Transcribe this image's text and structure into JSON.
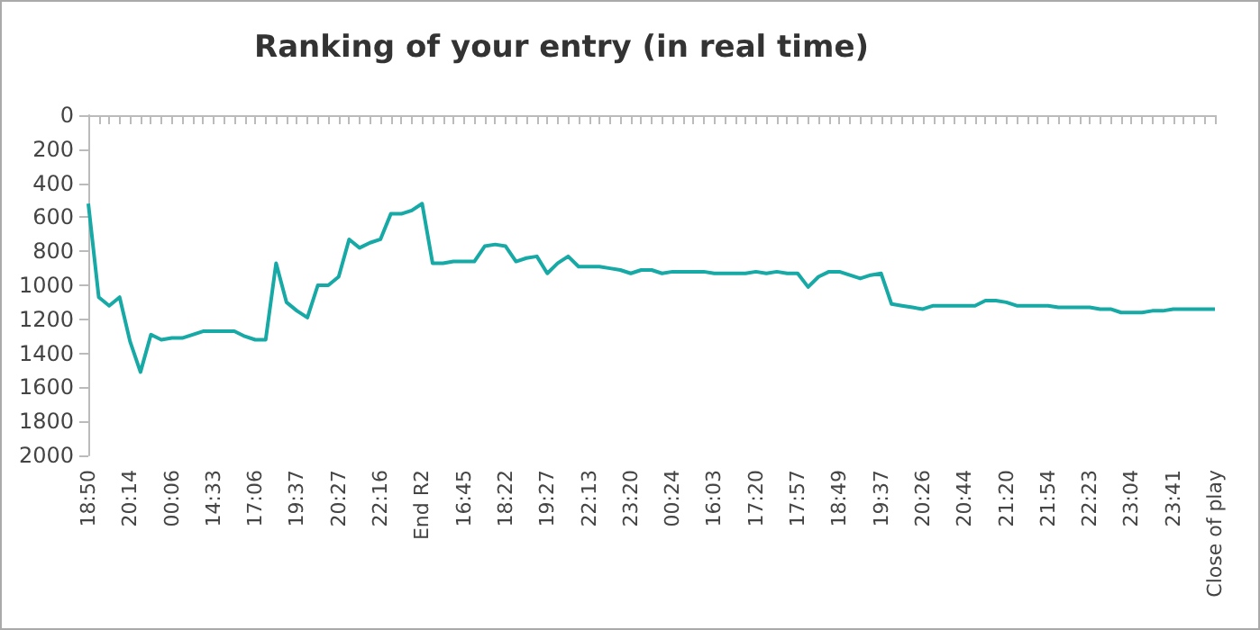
{
  "chart_data": {
    "type": "line",
    "title": "Ranking of your entry (in real time)",
    "categories": [
      "18:50",
      null,
      null,
      null,
      "20:14",
      null,
      null,
      null,
      "00:06",
      null,
      null,
      null,
      "14:33",
      null,
      null,
      null,
      "17:06",
      null,
      null,
      null,
      "19:37",
      null,
      null,
      null,
      "20:27",
      null,
      null,
      null,
      "22:16",
      null,
      null,
      null,
      "End R2",
      null,
      null,
      null,
      "16:45",
      null,
      null,
      null,
      "18:22",
      null,
      null,
      null,
      "19:27",
      null,
      null,
      null,
      "22:13",
      null,
      null,
      null,
      "23:20",
      null,
      null,
      null,
      "00:24",
      null,
      null,
      null,
      "16:03",
      null,
      null,
      null,
      "17:20",
      null,
      null,
      null,
      "17:57",
      null,
      null,
      null,
      "18:49",
      null,
      null,
      null,
      "19:37",
      null,
      null,
      null,
      "20:26",
      null,
      null,
      null,
      "20:44",
      null,
      null,
      null,
      "21:20",
      null,
      null,
      null,
      "21:54",
      null,
      null,
      null,
      "22:23",
      null,
      null,
      null,
      "23:04",
      null,
      null,
      null,
      "23:41",
      null,
      null,
      null,
      "Close of play"
    ],
    "series": [
      {
        "color": "#17a9a5",
        "values": [
          520,
          1070,
          1120,
          1070,
          1330,
          1510,
          1290,
          1320,
          1310,
          1310,
          1290,
          1270,
          1270,
          1270,
          1270,
          1300,
          1320,
          1320,
          870,
          1100,
          1150,
          1190,
          1000,
          1000,
          950,
          730,
          780,
          750,
          730,
          580,
          580,
          560,
          520,
          870,
          870,
          860,
          860,
          860,
          770,
          760,
          770,
          860,
          840,
          830,
          930,
          870,
          830,
          890,
          890,
          890,
          900,
          910,
          930,
          910,
          910,
          930,
          920,
          920,
          920,
          920,
          930,
          930,
          930,
          930,
          920,
          930,
          920,
          930,
          930,
          1010,
          950,
          920,
          920,
          940,
          960,
          940,
          930,
          1110,
          1120,
          1130,
          1140,
          1120,
          1120,
          1120,
          1120,
          1120,
          1090,
          1090,
          1100,
          1120,
          1120,
          1120,
          1120,
          1130,
          1130,
          1130,
          1130,
          1140,
          1140,
          1160,
          1160,
          1160,
          1150,
          1150,
          1140,
          1140,
          1140,
          1140,
          1140
        ]
      }
    ],
    "ylim": [
      2000,
      0
    ],
    "yticks": [
      0,
      200,
      400,
      600,
      800,
      1000,
      1200,
      1400,
      1600,
      1800,
      2000
    ],
    "grid": false,
    "marker": "none",
    "line_style": "solid"
  }
}
